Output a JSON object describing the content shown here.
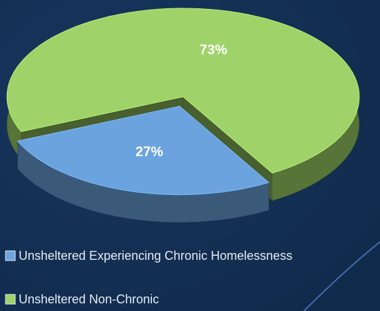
{
  "chart_data": {
    "type": "pie",
    "categories": [
      "Unsheltered Experiencing Chronic Homelessness",
      "Unsheltered Non-Chronic"
    ],
    "values": [
      27,
      73
    ],
    "value_labels": [
      "27%",
      "73%"
    ],
    "colors": [
      "#6ba3de",
      "#9fd268"
    ],
    "legend": "bottom"
  }
}
